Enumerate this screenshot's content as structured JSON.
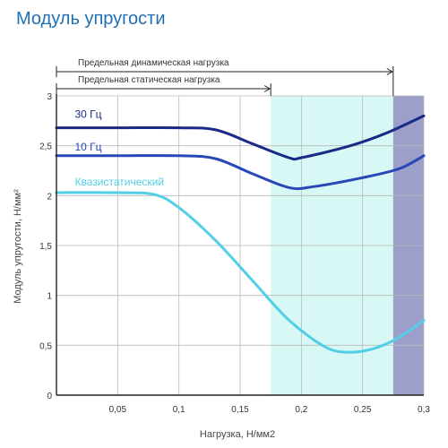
{
  "page": {
    "title": "Модуль упругости"
  },
  "chart_data": {
    "type": "line",
    "title": "Модуль упругости",
    "xlabel": "Нагрузка, Н/мм2",
    "ylabel": "Модуль упругости, Н/мм²",
    "xlim": [
      0,
      0.3
    ],
    "ylim": [
      0,
      3
    ],
    "x_ticks": [
      {
        "value": 0.05,
        "label": "0,05"
      },
      {
        "value": 0.1,
        "label": "0,1"
      },
      {
        "value": 0.15,
        "label": "0,15"
      },
      {
        "value": 0.2,
        "label": "0,2"
      },
      {
        "value": 0.25,
        "label": "0,25"
      },
      {
        "value": 0.3,
        "label": "0,3"
      }
    ],
    "y_ticks": [
      {
        "value": 0,
        "label": "0"
      },
      {
        "value": 0.5,
        "label": "0,5"
      },
      {
        "value": 1,
        "label": "1"
      },
      {
        "value": 1.5,
        "label": "1,5"
      },
      {
        "value": 2,
        "label": "2"
      },
      {
        "value": 2.5,
        "label": "2,5"
      },
      {
        "value": 3,
        "label": "3"
      }
    ],
    "grid": true,
    "regions": [
      {
        "x_start": 0.175,
        "x_end": 0.275,
        "color": "#d7f8f4"
      },
      {
        "x_start": 0.275,
        "x_end": 0.3,
        "color": "#9b9fca"
      }
    ],
    "ranges": [
      {
        "label": "Предельная динамическая нагрузка",
        "x_start": 0,
        "x_end": 0.275,
        "arrow": "right"
      },
      {
        "label": "Предельная статическая нагрузка",
        "x_start": 0,
        "x_end": 0.175,
        "arrow": "right"
      }
    ],
    "series": [
      {
        "name": "30 Гц",
        "color": "#1a2a86",
        "label_x": 0.015,
        "label_y": 2.78,
        "points": [
          [
            0,
            2.68
          ],
          [
            0.05,
            2.68
          ],
          [
            0.1,
            2.68
          ],
          [
            0.13,
            2.66
          ],
          [
            0.16,
            2.52
          ],
          [
            0.19,
            2.38
          ],
          [
            0.2,
            2.38
          ],
          [
            0.24,
            2.5
          ],
          [
            0.27,
            2.63
          ],
          [
            0.3,
            2.8
          ]
        ]
      },
      {
        "name": "10 Гц",
        "color": "#2748b8",
        "label_x": 0.015,
        "label_y": 2.45,
        "points": [
          [
            0,
            2.4
          ],
          [
            0.05,
            2.4
          ],
          [
            0.1,
            2.4
          ],
          [
            0.13,
            2.37
          ],
          [
            0.16,
            2.22
          ],
          [
            0.19,
            2.08
          ],
          [
            0.21,
            2.09
          ],
          [
            0.25,
            2.18
          ],
          [
            0.28,
            2.27
          ],
          [
            0.3,
            2.4
          ]
        ]
      },
      {
        "name": "Квазистатический",
        "color": "#52cfe6",
        "label_x": 0.015,
        "label_y": 2.1,
        "points": [
          [
            0,
            2.03
          ],
          [
            0.05,
            2.03
          ],
          [
            0.08,
            2.01
          ],
          [
            0.1,
            1.88
          ],
          [
            0.13,
            1.55
          ],
          [
            0.16,
            1.15
          ],
          [
            0.19,
            0.75
          ],
          [
            0.22,
            0.48
          ],
          [
            0.24,
            0.43
          ],
          [
            0.26,
            0.47
          ],
          [
            0.28,
            0.58
          ],
          [
            0.3,
            0.75
          ]
        ]
      }
    ]
  }
}
